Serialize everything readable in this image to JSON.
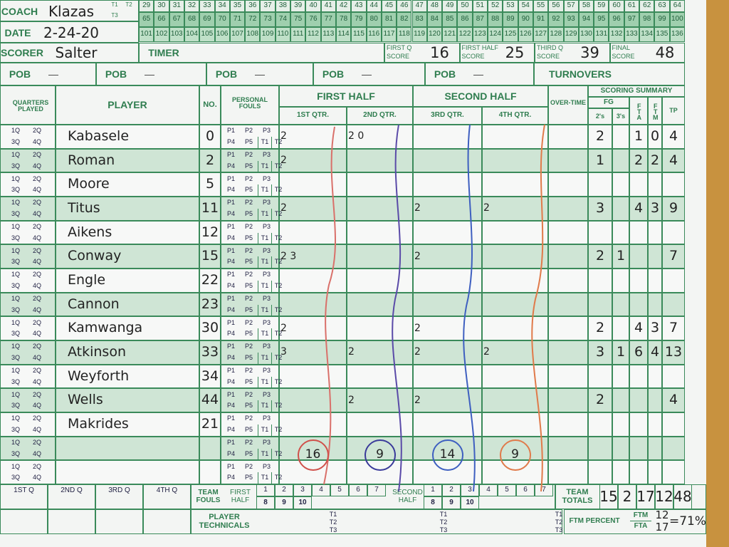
{
  "header": {
    "coach_label": "COACH",
    "coach": "Klazas",
    "date_label": "DATE",
    "date": "2-24-20",
    "scorer_label": "SCORER",
    "scorer": "Salter",
    "timer_label": "TIMER",
    "t_labels": [
      "T1",
      "T2",
      "T3"
    ],
    "running_score": [
      [
        29,
        30,
        31,
        32,
        33,
        34,
        35,
        36,
        37,
        38,
        39,
        40,
        41,
        42,
        43,
        44,
        45,
        46,
        47,
        48,
        49,
        50,
        51,
        52,
        53,
        54,
        55,
        56,
        57,
        58,
        59,
        60,
        61,
        62,
        63,
        64
      ],
      [
        65,
        66,
        67,
        68,
        69,
        70,
        71,
        72,
        73,
        74,
        75,
        76,
        77,
        78,
        79,
        80,
        81,
        82,
        83,
        84,
        85,
        86,
        87,
        88,
        89,
        90,
        91,
        92,
        93,
        94,
        95,
        96,
        97,
        98,
        99,
        100
      ],
      [
        101,
        102,
        103,
        104,
        105,
        106,
        107,
        108,
        109,
        110,
        111,
        112,
        113,
        114,
        115,
        116,
        117,
        118,
        119,
        120,
        121,
        122,
        123,
        124,
        125,
        126,
        127,
        128,
        129,
        130,
        131,
        132,
        133,
        134,
        135,
        136
      ]
    ],
    "scores": [
      {
        "label": [
          "FIRST Q",
          "SCORE"
        ],
        "value": "16"
      },
      {
        "label": [
          "FIRST HALF",
          "SCORE"
        ],
        "value": "25"
      },
      {
        "label": [
          "THIRD Q",
          "SCORE"
        ],
        "value": "39"
      },
      {
        "label": [
          "FINAL",
          "SCORE"
        ],
        "value": "48"
      }
    ],
    "pob": [
      "POB",
      "POB",
      "POB",
      "POB",
      "POB"
    ],
    "pob_dash": "—",
    "turnovers": "TURNOVERS"
  },
  "columns": {
    "quarters_played": "QUARTERS PLAYED",
    "player": "PLAYER",
    "no": "NO.",
    "fouls": "PERSONAL FOULS",
    "first_half": "FIRST HALF",
    "second_half": "SECOND HALF",
    "qtrs": [
      "1ST QTR.",
      "2ND QTR.",
      "3RD QTR.",
      "4TH QTR."
    ],
    "overtime": "OVER-TIME",
    "summary": "SCORING SUMMARY",
    "fg": "FG",
    "twos": "2's",
    "threes": "3's",
    "fta": "FTA",
    "ftm": "FTM",
    "tp": "TP"
  },
  "row_labels": {
    "quarters": [
      "1Q",
      "2Q",
      "3Q",
      "4Q"
    ],
    "fouls_top": [
      "P1",
      "P2",
      "P3"
    ],
    "fouls_bottom": [
      "P4",
      "P5",
      "T1",
      "T2"
    ]
  },
  "players": [
    {
      "name": "Kabasele",
      "no": "0",
      "q": [
        "2",
        "2 0",
        null,
        null
      ],
      "fg2": "2",
      "fg3": null,
      "fta": "1",
      "ftm": "0",
      "tp": "4"
    },
    {
      "name": "Roman",
      "no": "2",
      "q": [
        "2",
        null,
        null,
        null
      ],
      "fg2": "1",
      "fg3": null,
      "fta": "2",
      "ftm": "2",
      "tp": "4"
    },
    {
      "name": "Moore",
      "no": "5",
      "q": [
        null,
        null,
        null,
        null
      ],
      "fg2": null,
      "fg3": null,
      "fta": null,
      "ftm": null,
      "tp": null
    },
    {
      "name": "Titus",
      "no": "11",
      "q": [
        "2",
        null,
        "2",
        "2"
      ],
      "fg2": "3",
      "fg3": null,
      "fta": "4",
      "ftm": "3",
      "tp": "9"
    },
    {
      "name": "Aikens",
      "no": "12",
      "q": [
        null,
        null,
        null,
        null
      ],
      "fg2": null,
      "fg3": null,
      "fta": null,
      "ftm": null,
      "tp": null
    },
    {
      "name": "Conway",
      "no": "15",
      "q": [
        "2 3",
        null,
        "2",
        null
      ],
      "fg2": "2",
      "fg3": "1",
      "fta": null,
      "ftm": null,
      "tp": "7"
    },
    {
      "name": "Engle",
      "no": "22",
      "q": [
        null,
        null,
        null,
        null
      ],
      "fg2": null,
      "fg3": null,
      "fta": null,
      "ftm": null,
      "tp": null
    },
    {
      "name": "Cannon",
      "no": "23",
      "q": [
        null,
        null,
        null,
        null
      ],
      "fg2": null,
      "fg3": null,
      "fta": null,
      "ftm": null,
      "tp": null
    },
    {
      "name": "Kamwanga",
      "no": "30",
      "q": [
        "2",
        null,
        "2",
        null
      ],
      "fg2": "2",
      "fg3": null,
      "fta": "4",
      "ftm": "3",
      "tp": "7"
    },
    {
      "name": "Atkinson",
      "no": "33",
      "q": [
        "3",
        "2",
        "2",
        "2"
      ],
      "fg2": "3",
      "fg3": "1",
      "fta": "6",
      "ftm": "4",
      "tp": "13"
    },
    {
      "name": "Weyforth",
      "no": "34",
      "q": [
        null,
        null,
        null,
        null
      ],
      "fg2": null,
      "fg3": null,
      "fta": null,
      "ftm": null,
      "tp": null
    },
    {
      "name": "Wells",
      "no": "44",
      "q": [
        null,
        "2",
        "2",
        null
      ],
      "fg2": "2",
      "fg3": null,
      "fta": null,
      "ftm": null,
      "tp": "4"
    },
    {
      "name": "Makrides",
      "no": "21",
      "q": [
        null,
        null,
        null,
        null
      ],
      "fg2": null,
      "fg3": null,
      "fta": null,
      "ftm": null,
      "tp": null
    }
  ],
  "quarter_totals": [
    "16",
    "9",
    "14",
    "9"
  ],
  "footer": {
    "quarter_labels": [
      "1ST Q",
      "2ND Q",
      "3RD Q",
      "4TH Q"
    ],
    "team_fouls": "TEAM FOULS",
    "first_half": "FIRST HALF",
    "second_half": "SECOND HALF",
    "foul_numbers_top": [
      "1",
      "2",
      "3",
      "4",
      "5",
      "6",
      "7"
    ],
    "foul_numbers_bottom": [
      "8",
      "9",
      "10"
    ],
    "team_totals": "TEAM TOTALS",
    "totals": [
      "15",
      "2",
      "17",
      "12",
      "48"
    ],
    "player_technicals": "PLAYER TECHNICALS",
    "technical_labels": [
      "T1",
      "T2",
      "T3"
    ],
    "ftm_percent": "FTM PERCENT",
    "ftm": "FTM",
    "fta": "FTA",
    "made": "12",
    "attempted": "17",
    "result": "=71%"
  }
}
